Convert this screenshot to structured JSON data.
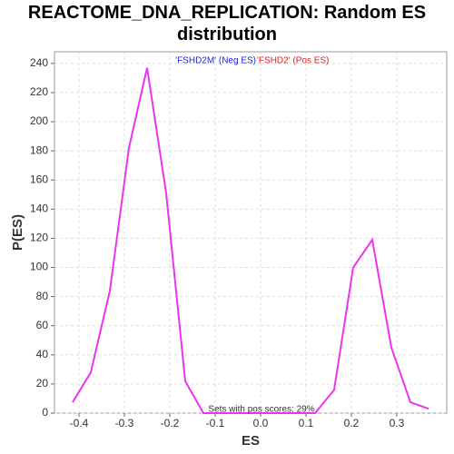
{
  "chart_data": {
    "type": "line",
    "title": "REACTOME_DNA_REPLICATION: Random ES distribution",
    "xlabel": "ES",
    "ylabel": "P(ES)",
    "annotations": [
      {
        "text": "'FSHD2M' (Neg ES)",
        "color": "#2020dd"
      },
      {
        "text": "'FSHD2' (Pos ES)",
        "color": "#dd2020"
      },
      {
        "text": "Sets with pos scores: 29%",
        "color": "#333333"
      }
    ],
    "x": [
      -0.414,
      -0.374,
      -0.332,
      -0.29,
      -0.25,
      -0.208,
      -0.166,
      -0.126,
      -0.084,
      -0.042,
      0,
      0.04,
      0.08,
      0.12,
      0.162,
      0.204,
      0.246,
      0.288,
      0.33,
      0.37
    ],
    "series": [
      {
        "name": "P(ES)",
        "color": "#ee33ee",
        "values": [
          7.5,
          28,
          84,
          182,
          237,
          151,
          22,
          0,
          0,
          0,
          0,
          0,
          0,
          0,
          16,
          100,
          119,
          45,
          7.5,
          3
        ]
      }
    ],
    "xlim": [
      -0.454,
      0.41
    ],
    "ylim": [
      0,
      248
    ],
    "xticks": [
      -0.4,
      -0.3,
      -0.2,
      -0.1,
      {
        "value": 0,
        "label": "0.0"
      },
      0.1,
      0.2,
      0.3
    ],
    "yticks": [
      0,
      20,
      40,
      60,
      80,
      100,
      120,
      140,
      160,
      180,
      200,
      220,
      240
    ],
    "grid": true
  }
}
